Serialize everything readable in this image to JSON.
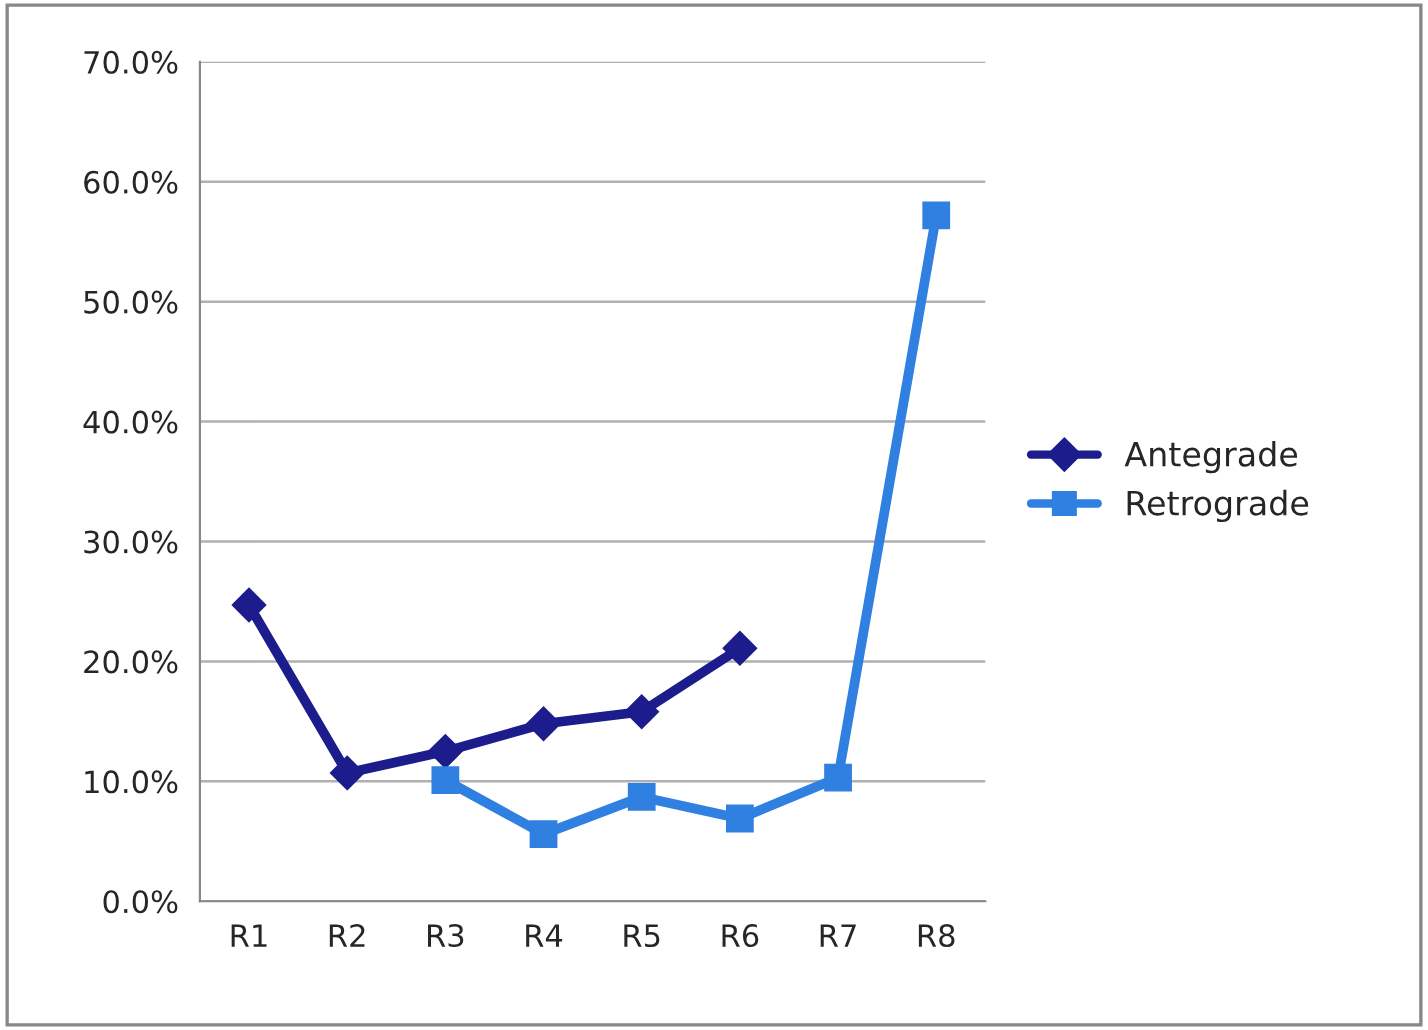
{
  "chart_data": {
    "type": "line",
    "categories": [
      "R1",
      "R2",
      "R3",
      "R4",
      "R5",
      "R6",
      "R7",
      "R8"
    ],
    "series": [
      {
        "name": "Antegrade",
        "color": "#1c1c8c",
        "marker": "diamond",
        "values": [
          24.7,
          10.7,
          12.5,
          14.8,
          15.8,
          21.1,
          null,
          null
        ]
      },
      {
        "name": "Retrograde",
        "color": "#2f80e0",
        "marker": "square",
        "values": [
          null,
          null,
          10.1,
          5.6,
          8.7,
          6.9,
          10.3,
          57.2
        ]
      }
    ],
    "ylim": [
      0,
      70
    ],
    "yticks": [
      {
        "value": 0,
        "label": "0.0%"
      },
      {
        "value": 10,
        "label": "10.0%"
      },
      {
        "value": 20,
        "label": "20.0%"
      },
      {
        "value": 30,
        "label": "30.0%"
      },
      {
        "value": 40,
        "label": "40.0%"
      },
      {
        "value": 50,
        "label": "50.0%"
      },
      {
        "value": 60,
        "label": "60.0%"
      },
      {
        "value": 70,
        "label": "70.0%"
      }
    ],
    "grid": "y",
    "legend": "right",
    "line_style": "solid"
  }
}
